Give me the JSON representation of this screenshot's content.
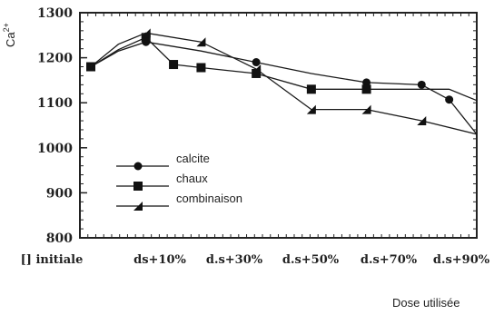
{
  "chart_data": {
    "type": "line",
    "title": "",
    "ylabel_main": "Ca",
    "ylabel_sup": "2+",
    "xlabel": "Dose utilisée",
    "categories": [
      "[] initiale",
      "ds+10%",
      "d.s+30%",
      "d.s+50%",
      "d.s+70%",
      "d.s+90%"
    ],
    "ylim": [
      800,
      1300
    ],
    "yticks": [
      800,
      900,
      1000,
      1100,
      1200,
      1300
    ],
    "series": [
      {
        "name": "calcite",
        "marker": "circle",
        "color": "#1a1a1a",
        "x": [
          0,
          0.5,
          1,
          2,
          3,
          4,
          5,
          6,
          6.5,
          7
        ],
        "y": [
          1180,
          1215,
          1235,
          1215,
          1190,
          1165,
          1145,
          1140,
          1107,
          1030
        ],
        "marker_indices": [
          0,
          2,
          4,
          6,
          7,
          8
        ]
      },
      {
        "name": "chaux",
        "marker": "square",
        "color": "#1a1a1a",
        "x": [
          0,
          0.5,
          1,
          1.5,
          2,
          3,
          4,
          5,
          6,
          6.5,
          7
        ],
        "y": [
          1180,
          1218,
          1245,
          1185,
          1178,
          1165,
          1130,
          1130,
          1130,
          1130,
          1105
        ],
        "marker_indices": [
          0,
          2,
          3,
          4,
          5,
          6,
          7
        ]
      },
      {
        "name": "combinaison",
        "marker": "triangle",
        "color": "#1a1a1a",
        "x": [
          0,
          0.5,
          1,
          2,
          3,
          4,
          5,
          6,
          7
        ],
        "y": [
          1180,
          1230,
          1255,
          1235,
          1175,
          1085,
          1085,
          1060,
          1030
        ],
        "marker_indices": [
          0,
          2,
          3,
          4,
          5,
          6,
          7
        ]
      }
    ],
    "grid": false,
    "legend_position": "left-middle"
  }
}
